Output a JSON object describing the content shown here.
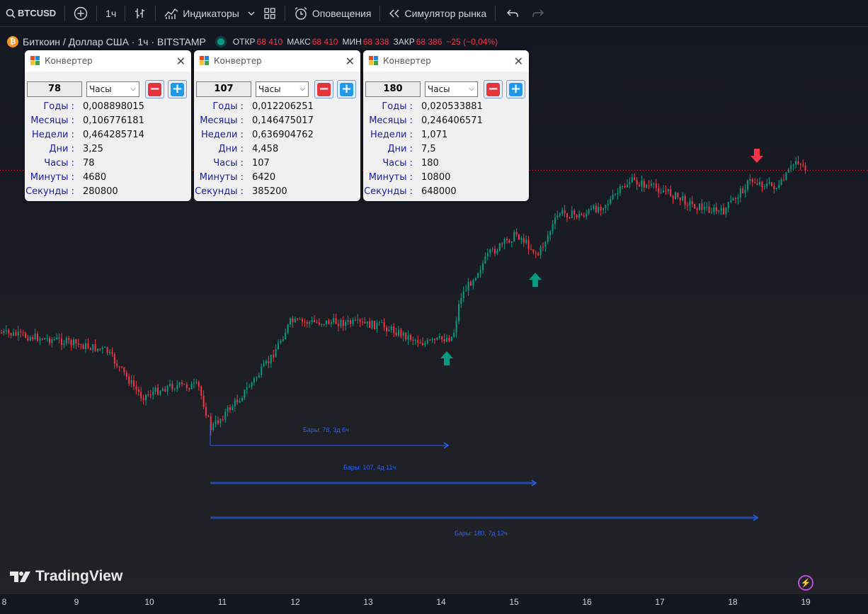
{
  "toolbar": {
    "symbol": "BTCUSD",
    "interval": "1ч",
    "indicators": "Индикаторы",
    "alerts": "Оповещения",
    "replay": "Симулятор рынка"
  },
  "legend": {
    "title": "Биткоин / Доллар США · 1ч · BITSTAMP",
    "open_label": "ОТКР",
    "open": "68 410",
    "high_label": "МАКС",
    "high": "68 410",
    "low_label": "МИН",
    "low": "68 338",
    "close_label": "ЗАКР",
    "close": "68 386",
    "change": "−25 (−0,04%)"
  },
  "converters": [
    {
      "title": "Конвертер",
      "value": "78",
      "unit": "Часы",
      "rows": [
        {
          "label": "Годы :",
          "value": "0,008898015"
        },
        {
          "label": "Месяцы :",
          "value": "0,106776181"
        },
        {
          "label": "Недели :",
          "value": "0,464285714"
        },
        {
          "label": "Дни :",
          "value": "3,25"
        },
        {
          "label": "Часы :",
          "value": "78"
        },
        {
          "label": "Минуты :",
          "value": "4680"
        },
        {
          "label": "Секунды :",
          "value": "280800"
        }
      ]
    },
    {
      "title": "Конвертер",
      "value": "107",
      "unit": "Часы",
      "rows": [
        {
          "label": "Годы :",
          "value": "0,012206251"
        },
        {
          "label": "Месяцы :",
          "value": "0,146475017"
        },
        {
          "label": "Недели :",
          "value": "0,636904762"
        },
        {
          "label": "Дни :",
          "value": "4,458"
        },
        {
          "label": "Часы :",
          "value": "107"
        },
        {
          "label": "Минуты :",
          "value": "6420"
        },
        {
          "label": "Секунды :",
          "value": "385200"
        }
      ]
    },
    {
      "title": "Конвертер",
      "value": "180",
      "unit": "Часы",
      "rows": [
        {
          "label": "Годы :",
          "value": "0,020533881"
        },
        {
          "label": "Месяцы :",
          "value": "0,246406571"
        },
        {
          "label": "Недели :",
          "value": "1,071"
        },
        {
          "label": "Дни :",
          "value": "7,5"
        },
        {
          "label": "Часы :",
          "value": "180"
        },
        {
          "label": "Минуты :",
          "value": "10800"
        },
        {
          "label": "Секунды :",
          "value": "648000"
        }
      ]
    }
  ],
  "measures": [
    {
      "label": "Бары: 78, 3д 6ч",
      "bars": 78
    },
    {
      "label": "Бары: 107, 4д 11ч",
      "bars": 107
    },
    {
      "label": "Бары: 180, 7д 12ч",
      "bars": 180
    }
  ],
  "time_axis": [
    "8",
    "9",
    "10",
    "11",
    "12",
    "13",
    "14",
    "15",
    "16",
    "17",
    "18",
    "19"
  ],
  "brand": "TradingView",
  "colors": {
    "up": "#089981",
    "down": "#f23645",
    "measure": "#2962ff",
    "accent": "#b94fd9"
  },
  "arrows": [
    {
      "direction": "up",
      "color": "#089981"
    },
    {
      "direction": "up",
      "color": "#089981"
    },
    {
      "direction": "down",
      "color": "#f23645"
    }
  ]
}
